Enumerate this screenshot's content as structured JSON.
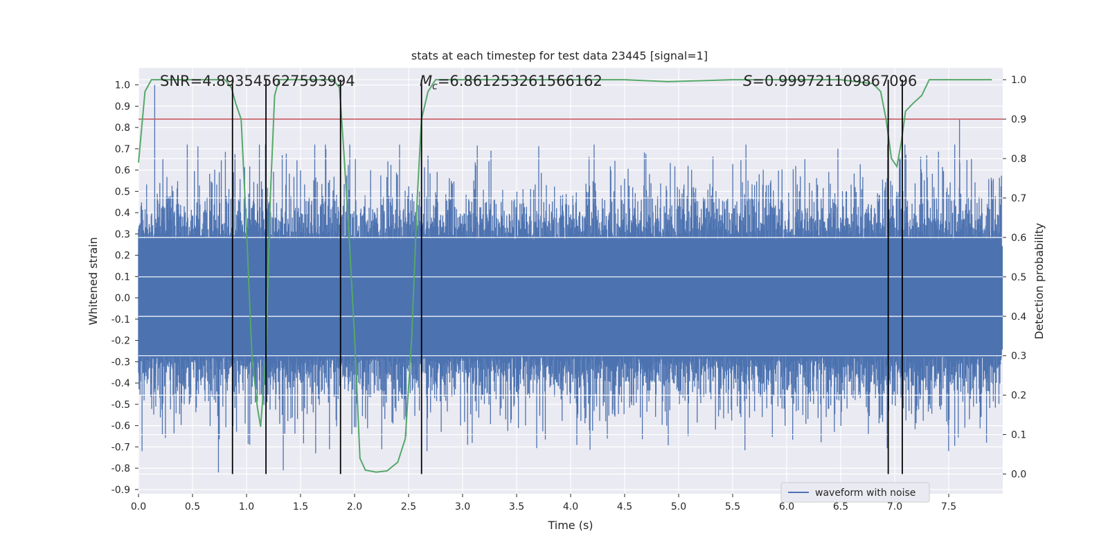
{
  "chart_data": {
    "type": "line",
    "title": "stats at each timestep for test data 23445 [signal=1]",
    "xlabel": "Time (s)",
    "ylabel": "Whitened strain",
    "y2label": "Detection probability",
    "xlim": [
      0.0,
      8.0
    ],
    "ylim": [
      -0.92,
      1.08
    ],
    "y2lim": [
      -0.05,
      1.03
    ],
    "x_ticks": [
      0.0,
      0.5,
      1.0,
      1.5,
      2.0,
      2.5,
      3.0,
      3.5,
      4.0,
      4.5,
      5.0,
      5.5,
      6.0,
      6.5,
      7.0,
      7.5
    ],
    "y_ticks": [
      -0.9,
      -0.8,
      -0.7,
      -0.6,
      -0.5,
      -0.4,
      -0.3,
      -0.2,
      -0.1,
      0.0,
      0.1,
      0.2,
      0.3,
      0.4,
      0.5,
      0.6,
      0.7,
      0.8,
      0.9,
      1.0
    ],
    "y2_ticks": [
      0.0,
      0.1,
      0.2,
      0.3,
      0.4,
      0.5,
      0.6,
      0.7,
      0.8,
      0.9,
      1.0
    ],
    "grid": true,
    "legend_position": "lower-right",
    "annotations": {
      "snr": "SNR=4.893545627593994",
      "chirp_mass_symbol": "M",
      "chirp_mass_subscript": "c",
      "chirp_mass_value": "=6.861253261566162",
      "spin_symbol": "S",
      "spin_value": "=0.999721109867096"
    },
    "threshold_line": {
      "axis": "right",
      "value": 0.9,
      "color": "#c44e52"
    },
    "vertical_markers": [
      0.87,
      1.18,
      1.87,
      2.62,
      6.94,
      7.07
    ],
    "strain_series": {
      "name": "waveform with noise",
      "color": "#4c72b0",
      "envelope_core": 0.27,
      "notable_peaks": [
        {
          "x": 0.15,
          "y": 1.0
        },
        {
          "x": 0.74,
          "y": -0.82
        },
        {
          "x": 1.34,
          "y": -0.81
        },
        {
          "x": 1.64,
          "y": -0.73
        },
        {
          "x": 7.6,
          "y": 0.84
        },
        {
          "x": 7.85,
          "y": -0.68
        }
      ]
    },
    "probability_series": {
      "color": "#55a868",
      "x": [
        0.0,
        0.06,
        0.12,
        0.2,
        0.3,
        0.5,
        0.7,
        0.8,
        0.86,
        0.9,
        0.95,
        1.0,
        1.05,
        1.1,
        1.13,
        1.18,
        1.22,
        1.26,
        1.3,
        1.4,
        1.6,
        1.8,
        1.86,
        1.9,
        1.95,
        2.0,
        2.05,
        2.1,
        2.2,
        2.3,
        2.4,
        2.47,
        2.53,
        2.58,
        2.62,
        2.68,
        2.75,
        2.85,
        3.0,
        3.5,
        4.0,
        4.5,
        4.9,
        5.5,
        6.0,
        6.5,
        6.8,
        6.87,
        6.92,
        6.97,
        7.02,
        7.06,
        7.1,
        7.17,
        7.25,
        7.32,
        7.4,
        7.6,
        7.75,
        7.9
      ],
      "values": [
        0.79,
        0.97,
        1.0,
        1.0,
        1.0,
        1.0,
        1.0,
        1.0,
        0.98,
        0.94,
        0.9,
        0.62,
        0.3,
        0.17,
        0.12,
        0.3,
        0.7,
        0.96,
        1.0,
        1.0,
        1.0,
        1.0,
        0.98,
        0.82,
        0.6,
        0.35,
        0.04,
        0.01,
        0.005,
        0.008,
        0.03,
        0.09,
        0.35,
        0.7,
        0.9,
        0.97,
        1.0,
        1.0,
        1.0,
        1.0,
        1.0,
        1.0,
        0.995,
        1.0,
        1.0,
        1.0,
        0.99,
        0.97,
        0.9,
        0.8,
        0.78,
        0.84,
        0.92,
        0.94,
        0.96,
        1.0,
        1.0,
        1.0,
        1.0,
        1.0
      ]
    }
  }
}
